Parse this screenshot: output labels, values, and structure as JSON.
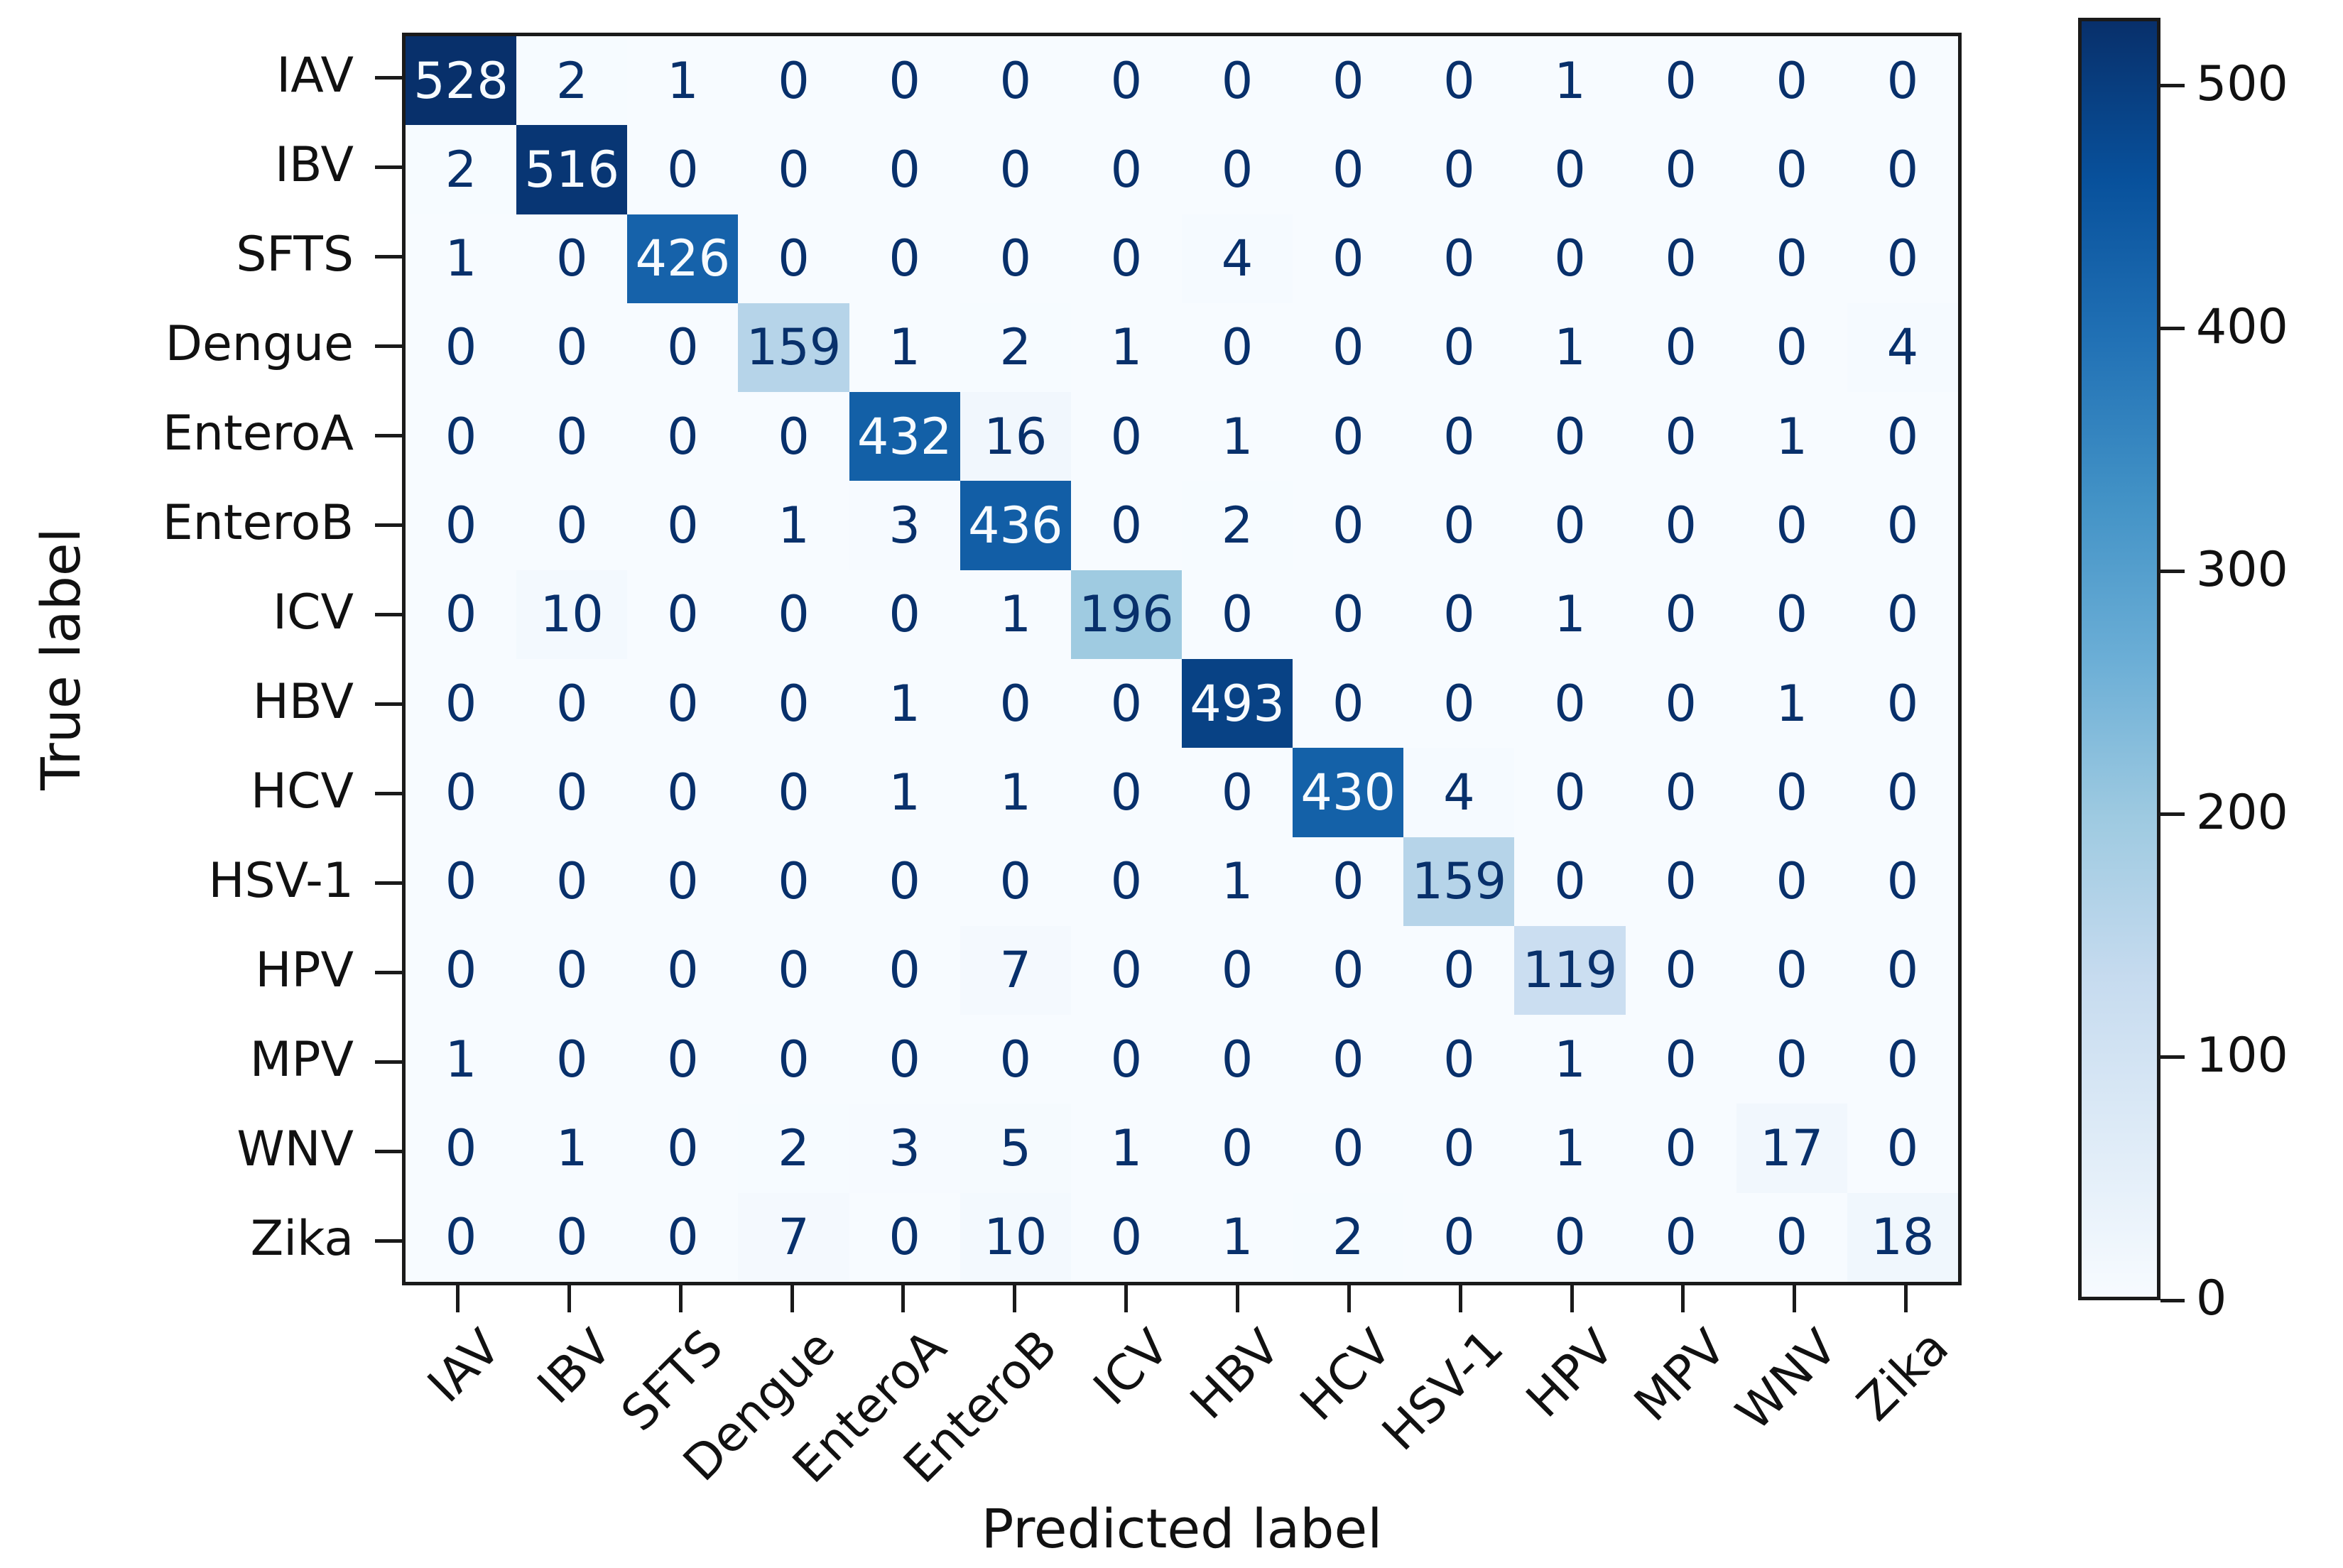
{
  "chart_data": {
    "type": "heatmap",
    "title": "",
    "xlabel": "Predicted label",
    "ylabel": "True label",
    "categories": [
      "IAV",
      "IBV",
      "SFTS",
      "Dengue",
      "EnteroA",
      "EnteroB",
      "ICV",
      "HBV",
      "HCV",
      "HSV-1",
      "HPV",
      "MPV",
      "WNV",
      "Zika"
    ],
    "matrix": [
      [
        528,
        2,
        1,
        0,
        0,
        0,
        0,
        0,
        0,
        0,
        1,
        0,
        0,
        0
      ],
      [
        2,
        516,
        0,
        0,
        0,
        0,
        0,
        0,
        0,
        0,
        0,
        0,
        0,
        0
      ],
      [
        1,
        0,
        426,
        0,
        0,
        0,
        0,
        4,
        0,
        0,
        0,
        0,
        0,
        0
      ],
      [
        0,
        0,
        0,
        159,
        1,
        2,
        1,
        0,
        0,
        0,
        1,
        0,
        0,
        4
      ],
      [
        0,
        0,
        0,
        0,
        432,
        16,
        0,
        1,
        0,
        0,
        0,
        0,
        1,
        0
      ],
      [
        0,
        0,
        0,
        1,
        3,
        436,
        0,
        2,
        0,
        0,
        0,
        0,
        0,
        0
      ],
      [
        0,
        10,
        0,
        0,
        0,
        1,
        196,
        0,
        0,
        0,
        1,
        0,
        0,
        0
      ],
      [
        0,
        0,
        0,
        0,
        1,
        0,
        0,
        493,
        0,
        0,
        0,
        0,
        1,
        0
      ],
      [
        0,
        0,
        0,
        0,
        1,
        1,
        0,
        0,
        430,
        4,
        0,
        0,
        0,
        0
      ],
      [
        0,
        0,
        0,
        0,
        0,
        0,
        0,
        1,
        0,
        159,
        0,
        0,
        0,
        0
      ],
      [
        0,
        0,
        0,
        0,
        0,
        7,
        0,
        0,
        0,
        0,
        119,
        0,
        0,
        0
      ],
      [
        1,
        0,
        0,
        0,
        0,
        0,
        0,
        0,
        0,
        0,
        1,
        0,
        0,
        0
      ],
      [
        0,
        1,
        0,
        2,
        3,
        5,
        1,
        0,
        0,
        0,
        1,
        0,
        17,
        0
      ],
      [
        0,
        0,
        0,
        7,
        0,
        10,
        0,
        1,
        2,
        0,
        0,
        0,
        0,
        18
      ]
    ],
    "vmin": 0,
    "vmax": 528,
    "colormap": "Blues",
    "colormap_anchors": [
      {
        "t": 0.0,
        "hex": "#f7fbff"
      },
      {
        "t": 0.125,
        "hex": "#deebf7"
      },
      {
        "t": 0.25,
        "hex": "#c6dbef"
      },
      {
        "t": 0.375,
        "hex": "#9ecae1"
      },
      {
        "t": 0.5,
        "hex": "#6baed6"
      },
      {
        "t": 0.625,
        "hex": "#4292c6"
      },
      {
        "t": 0.75,
        "hex": "#2171b5"
      },
      {
        "t": 0.875,
        "hex": "#08519c"
      },
      {
        "t": 1.0,
        "hex": "#08306b"
      }
    ],
    "colorbar_ticks": [
      0,
      100,
      200,
      300,
      400,
      500
    ],
    "colorbar_position": "right",
    "grid": false,
    "cell_text_dark": "#08306b",
    "cell_text_light": "#f7fbff"
  },
  "figure": {
    "background": "#ffffff",
    "spine_color": "#1a1a1a",
    "tick_color": "#1a1a1a",
    "text_color": "#111111"
  }
}
